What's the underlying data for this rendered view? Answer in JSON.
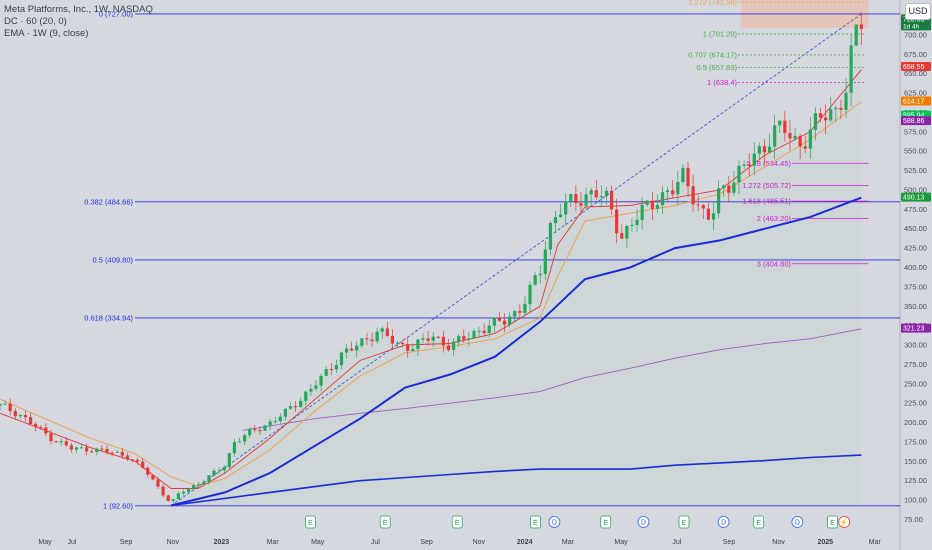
{
  "header": {
    "title": "Meta Platforms, Inc., 1W, NASDAQ",
    "indicator_1": "DC · 60 (20, 0)",
    "indicator_2": "EMA · 1W (9, close)",
    "currency": "USD"
  },
  "chart_data": {
    "type": "candlestick",
    "title": "Meta Platforms, Inc., 1W, NASDAQ",
    "ylim": [
      55,
      745
    ],
    "y_ticks": [
      75,
      100,
      125,
      150,
      175,
      200,
      225,
      250,
      275,
      300,
      325,
      350,
      375,
      400,
      425,
      450,
      475,
      500,
      525,
      550,
      575,
      600,
      625,
      650,
      675,
      700
    ],
    "x_ticks": [
      {
        "label": "May",
        "t": 0.05
      },
      {
        "label": "Jul",
        "t": 0.08
      },
      {
        "label": "Sep",
        "t": 0.14
      },
      {
        "label": "Nov",
        "t": 0.192
      },
      {
        "label": "2023",
        "t": 0.246
      },
      {
        "label": "Mar",
        "t": 0.303
      },
      {
        "label": "May",
        "t": 0.353
      },
      {
        "label": "Jul",
        "t": 0.417
      },
      {
        "label": "Sep",
        "t": 0.474
      },
      {
        "label": "Nov",
        "t": 0.532
      },
      {
        "label": "2024",
        "t": 0.583
      },
      {
        "label": "Mar",
        "t": 0.631
      },
      {
        "label": "May",
        "t": 0.69
      },
      {
        "label": "Jul",
        "t": 0.752
      },
      {
        "label": "Sep",
        "t": 0.81
      },
      {
        "label": "Nov",
        "t": 0.865
      },
      {
        "label": "2025",
        "t": 0.917
      },
      {
        "label": "Mar",
        "t": 0.972
      }
    ],
    "price_x": {
      "start": 0.0,
      "end": 0.957
    },
    "price_path": [
      [
        0.0,
        222
      ],
      [
        0.02,
        212
      ],
      [
        0.04,
        194
      ],
      [
        0.06,
        178
      ],
      [
        0.08,
        166
      ],
      [
        0.1,
        166
      ],
      [
        0.12,
        162
      ],
      [
        0.14,
        158
      ],
      [
        0.16,
        140
      ],
      [
        0.175,
        118
      ],
      [
        0.19,
        95
      ],
      [
        0.2,
        110
      ],
      [
        0.215,
        118
      ],
      [
        0.23,
        128
      ],
      [
        0.25,
        145
      ],
      [
        0.26,
        175
      ],
      [
        0.28,
        188
      ],
      [
        0.3,
        200
      ],
      [
        0.32,
        215
      ],
      [
        0.34,
        238
      ],
      [
        0.36,
        260
      ],
      [
        0.38,
        290
      ],
      [
        0.4,
        300
      ],
      [
        0.42,
        320
      ],
      [
        0.43,
        312
      ],
      [
        0.44,
        298
      ],
      [
        0.46,
        300
      ],
      [
        0.48,
        310
      ],
      [
        0.5,
        300
      ],
      [
        0.52,
        310
      ],
      [
        0.54,
        325
      ],
      [
        0.56,
        330
      ],
      [
        0.58,
        350
      ],
      [
        0.6,
        395
      ],
      [
        0.61,
        450
      ],
      [
        0.62,
        475
      ],
      [
        0.64,
        485
      ],
      [
        0.66,
        500
      ],
      [
        0.675,
        485
      ],
      [
        0.69,
        440
      ],
      [
        0.71,
        468
      ],
      [
        0.73,
        490
      ],
      [
        0.75,
        500
      ],
      [
        0.76,
        520
      ],
      [
        0.78,
        470
      ],
      [
        0.79,
        460
      ],
      [
        0.8,
        500
      ],
      [
        0.82,
        520
      ],
      [
        0.84,
        545
      ],
      [
        0.86,
        575
      ],
      [
        0.87,
        580
      ],
      [
        0.88,
        565
      ],
      [
        0.89,
        560
      ],
      [
        0.9,
        575
      ],
      [
        0.91,
        590
      ],
      [
        0.92,
        600
      ],
      [
        0.93,
        605
      ],
      [
        0.94,
        630
      ],
      [
        0.95,
        700
      ],
      [
        0.957,
        718
      ]
    ],
    "ema_red": [
      [
        0.0,
        212
      ],
      [
        0.05,
        190
      ],
      [
        0.1,
        168
      ],
      [
        0.15,
        150
      ],
      [
        0.19,
        115
      ],
      [
        0.22,
        115
      ],
      [
        0.25,
        135
      ],
      [
        0.3,
        180
      ],
      [
        0.35,
        230
      ],
      [
        0.4,
        280
      ],
      [
        0.45,
        300
      ],
      [
        0.5,
        302
      ],
      [
        0.55,
        315
      ],
      [
        0.6,
        350
      ],
      [
        0.62,
        430
      ],
      [
        0.65,
        478
      ],
      [
        0.7,
        480
      ],
      [
        0.75,
        490
      ],
      [
        0.8,
        500
      ],
      [
        0.85,
        545
      ],
      [
        0.9,
        575
      ],
      [
        0.957,
        655
      ]
    ],
    "ema_orange": [
      [
        0.0,
        230
      ],
      [
        0.05,
        205
      ],
      [
        0.1,
        180
      ],
      [
        0.15,
        160
      ],
      [
        0.19,
        130
      ],
      [
        0.22,
        118
      ],
      [
        0.25,
        128
      ],
      [
        0.3,
        165
      ],
      [
        0.35,
        215
      ],
      [
        0.4,
        260
      ],
      [
        0.45,
        290
      ],
      [
        0.5,
        298
      ],
      [
        0.55,
        308
      ],
      [
        0.6,
        335
      ],
      [
        0.62,
        390
      ],
      [
        0.65,
        460
      ],
      [
        0.7,
        470
      ],
      [
        0.75,
        480
      ],
      [
        0.8,
        495
      ],
      [
        0.85,
        530
      ],
      [
        0.9,
        565
      ],
      [
        0.957,
        614
      ]
    ],
    "ma_blue": [
      [
        0.19,
        93
      ],
      [
        0.25,
        110
      ],
      [
        0.3,
        135
      ],
      [
        0.35,
        170
      ],
      [
        0.4,
        205
      ],
      [
        0.45,
        245
      ],
      [
        0.5,
        262
      ],
      [
        0.55,
        285
      ],
      [
        0.6,
        330
      ],
      [
        0.65,
        385
      ],
      [
        0.7,
        400
      ],
      [
        0.75,
        425
      ],
      [
        0.8,
        435
      ],
      [
        0.85,
        450
      ],
      [
        0.9,
        465
      ],
      [
        0.957,
        490
      ]
    ],
    "ma_purple": [
      [
        0.27,
        190
      ],
      [
        0.35,
        205
      ],
      [
        0.4,
        212
      ],
      [
        0.45,
        218
      ],
      [
        0.5,
        225
      ],
      [
        0.55,
        232
      ],
      [
        0.6,
        240
      ],
      [
        0.65,
        258
      ],
      [
        0.7,
        270
      ],
      [
        0.75,
        283
      ],
      [
        0.8,
        294
      ],
      [
        0.85,
        302
      ],
      [
        0.9,
        308
      ],
      [
        0.957,
        321
      ]
    ],
    "ma_long": [
      [
        0.19,
        93
      ],
      [
        0.3,
        110
      ],
      [
        0.4,
        125
      ],
      [
        0.5,
        133
      ],
      [
        0.55,
        137
      ],
      [
        0.6,
        140
      ],
      [
        0.65,
        140
      ],
      [
        0.7,
        140
      ],
      [
        0.75,
        145
      ],
      [
        0.8,
        148
      ],
      [
        0.85,
        151
      ],
      [
        0.9,
        155
      ],
      [
        0.957,
        158
      ]
    ],
    "fib_retracement": [
      {
        "label": "0 (727.00)",
        "value": 727
      },
      {
        "label": "0.382 (484.66)",
        "value": 484.66
      },
      {
        "label": "0.5 (409.80)",
        "value": 409.8
      },
      {
        "label": "0.618 (334.94)",
        "value": 334.94
      },
      {
        "label": "1 (92.60)",
        "value": 92.6
      }
    ],
    "green_levels": [
      {
        "label": "1.272 (742.58)",
        "value": 742.58,
        "color": "#f0a040"
      },
      {
        "label": "1 (701.20)",
        "value": 701.2,
        "color": "#4caf50"
      },
      {
        "label": "0.707 (674.17)",
        "value": 674.17,
        "color": "#4caf50"
      },
      {
        "label": "0.5 (657.83)",
        "value": 657.83,
        "color": "#4caf50"
      },
      {
        "label": "1 (638.4)",
        "value": 638.4,
        "color": "#d020d0"
      }
    ],
    "magenta_levels": [
      {
        "label": "0.78 (534.45)",
        "value": 534.45
      },
      {
        "label": "1.272 (505.72)",
        "value": 505.72
      },
      {
        "label": "1.618 (485.51)",
        "value": 485.51
      },
      {
        "label": "2 (463.20)",
        "value": 463.2
      },
      {
        "label": "3 (404.80)",
        "value": 404.8
      }
    ],
    "price_badges": [
      {
        "text": "720.05",
        "value": 720.05,
        "color": "#1b7a3f",
        "text2": "1d 4h"
      },
      {
        "text": "658.55",
        "value": 658.55,
        "color": "#e53935"
      },
      {
        "text": "614.17",
        "value": 614.17,
        "color": "#f57c00"
      },
      {
        "text": "595.94",
        "value": 595.94,
        "color": "#00c853"
      },
      {
        "text": "588.86",
        "value": 588.86,
        "color": "#8e24aa"
      },
      {
        "text": "490.13",
        "value": 490.13,
        "color": "#1b9a3a"
      },
      {
        "text": "321.23",
        "value": 321.23,
        "color": "#8e24aa"
      }
    ],
    "events": [
      {
        "t": 0.345,
        "kind": "E"
      },
      {
        "t": 0.428,
        "kind": "E"
      },
      {
        "t": 0.508,
        "kind": "E"
      },
      {
        "t": 0.595,
        "kind": "E"
      },
      {
        "t": 0.616,
        "kind": "D"
      },
      {
        "t": 0.673,
        "kind": "E"
      },
      {
        "t": 0.715,
        "kind": "D"
      },
      {
        "t": 0.76,
        "kind": "E"
      },
      {
        "t": 0.804,
        "kind": "D"
      },
      {
        "t": 0.843,
        "kind": "E"
      },
      {
        "t": 0.886,
        "kind": "D"
      },
      {
        "t": 0.925,
        "kind": "E"
      },
      {
        "t": 0.938,
        "kind": "F"
      }
    ]
  }
}
